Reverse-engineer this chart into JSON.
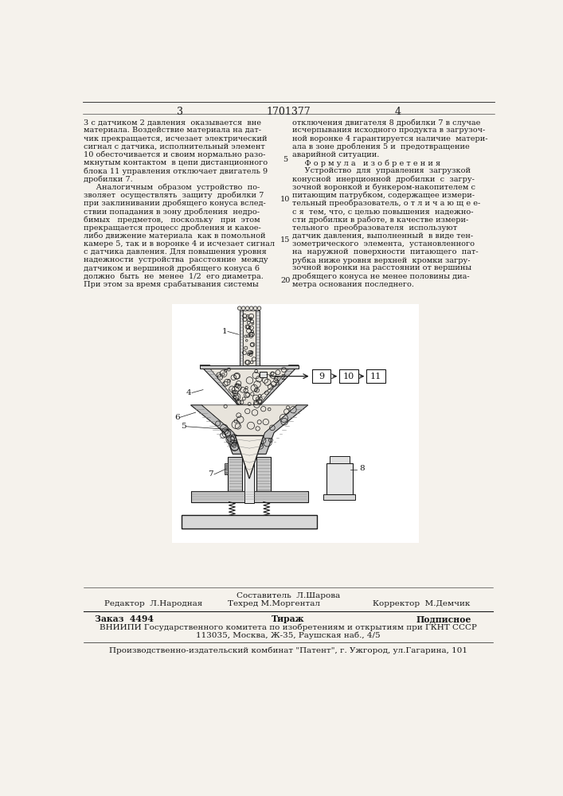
{
  "page_number_left": "3",
  "page_number_center": "1701377",
  "page_number_right": "4",
  "background_color": "#f5f2ec",
  "text_color": "#1a1a1a",
  "left_column_text": [
    "3 с датчиком 2 давления  оказывается  вне",
    "материала. Воздействие материала на дат-",
    "чик прекращается, исчезает электрический",
    "сигнал с датчика, исполнительный элемент",
    "10 обесточивается и своим нормально разо-",
    "мкнутым контактом  в цепи дистанционного",
    "блока 11 управления отключает двигатель 9",
    "дробилки 7.",
    "     Аналогичным  образом  устройство  по-",
    "зволяет  осуществлять  защиту  дробилки 7",
    "при заклинивании дробящего конуса вслед-",
    "ствии попадания в зону дробления  недро-",
    "бимых   предметов,   поскольку   при  этом",
    "прекращается процесс дробления и какое-",
    "либо движение материала  как в помольной",
    "камере 5, так и в воронке 4 и исчезает сигнал",
    "с датчика давления. Для повышения уровня",
    "надежности  устройства  расстояние  между",
    "датчиком и вершиной дробящего конуса 6",
    "должно  быть  не  менее  1/2  его диаметра.",
    "При этом за время срабатывания системы"
  ],
  "right_column_text": [
    "отключения двигателя 8 дробилки 7 в случае",
    "исчерпывания исходного продукта в загрузоч-",
    "ной воронке 4 гарантируется наличие  матери-",
    "ала в зоне дробления 5 и  предотвращение",
    "аварийной ситуации.",
    "     Ф о р м у л а   и з о б р е т е н и я",
    "     Устройство  для  управления  загрузкой",
    "конусной  инерционной  дробилки  с  загру-",
    "зочной воронкой и бункером-накопителем с",
    "питающим патрубком, содержащее измери-",
    "тельный преобразователь, о т л и ч а ю щ е е-",
    "с я  тем, что, с целью повышения  надежно-",
    "сти дробилки в работе, в качестве измери-",
    "тельного  преобразователя  используют",
    "датчик давления, выполненный  в виде тен-",
    "зометрического  элемента,  установленного",
    "на  наружной  поверхности  питающего  пат-",
    "рубка ниже уровня верхней  кромки загру-",
    "зочной воронки на расстоянии от вершины",
    "дробящего конуса не менее половины диа-",
    "метра основания последнего."
  ],
  "footer_sestavitel": "Составитель  Л.Шарова",
  "footer_redaktor_label": "Редактор  Л.Народная",
  "footer_tehred": "Техред М.Моргентал",
  "footer_korrektor": "Корректор  М.Демчик",
  "footer_zakaz": "Заказ  4494",
  "footer_tirazh": "Тираж",
  "footer_podpisnoe": "Подписное",
  "footer_vniiipi": "ВНИИПИ Государственного комитета по изобретениям и открытиям при ГКНТ СССР",
  "footer_address": "113035, Москва, Ж-35, Раушская наб., 4/5",
  "footer_kombinate": "Производственно-издательский комбинат \"Патент\", г. Ужгород, ул.Гагарина, 101"
}
